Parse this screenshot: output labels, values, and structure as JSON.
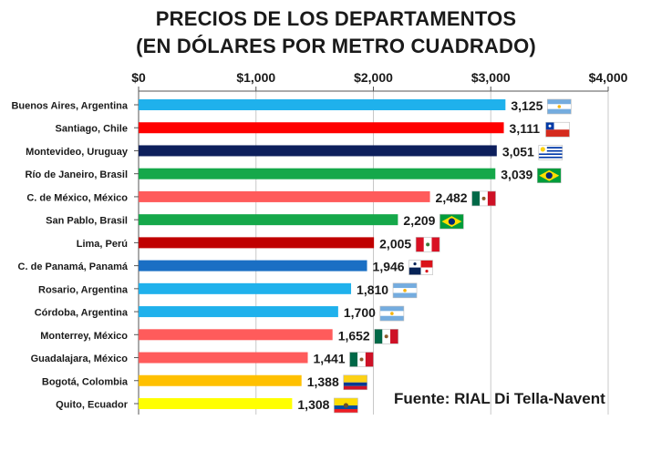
{
  "chart_data": {
    "type": "bar",
    "orientation": "horizontal",
    "title_line1": "PRECIOS DE LOS DEPARTAMENTOS",
    "title_line2": "(EN DÓLARES POR METRO CUADRADO)",
    "source": "Fuente: RIAL Di Tella-Navent",
    "xlim": [
      0,
      4000
    ],
    "x_ticks": [
      0,
      1000,
      2000,
      3000,
      4000
    ],
    "x_tick_labels": [
      "$0",
      "$1,000",
      "$2,000",
      "$3,000",
      "$4,000"
    ],
    "tick_position": "top",
    "grid": true,
    "categories": [
      "Buenos Aires, Argentina",
      "Santiago, Chile",
      "Montevideo, Uruguay",
      "Río de Janeiro, Brasil",
      "C. de México, México",
      "San Pablo, Brasil",
      "Lima, Perú",
      "C. de Panamá, Panamá",
      "Rosario, Argentina",
      "Córdoba, Argentina",
      "Monterrey, México",
      "Guadalajara, México",
      "Bogotá, Colombia",
      "Quito, Ecuador"
    ],
    "values": [
      3125,
      3111,
      3051,
      3039,
      2482,
      2209,
      2005,
      1946,
      1810,
      1700,
      1652,
      1441,
      1388,
      1308
    ],
    "value_labels": [
      "3,125",
      "3,111",
      "3,051",
      "3,039",
      "2,482",
      "2,209",
      "2,005",
      "1,946",
      "1,810",
      "1,700",
      "1,652",
      "1,441",
      "1,388",
      "1,308"
    ],
    "bar_colors": [
      "#1fb1ec",
      "#ff0000",
      "#0d1f5c",
      "#15a84a",
      "#ff5b5b",
      "#15a84a",
      "#c00000",
      "#1a6fc4",
      "#1fb1ec",
      "#1fb1ec",
      "#ff5b5b",
      "#ff5b5b",
      "#ffc000",
      "#ffff00"
    ],
    "flags": [
      "argentina-flag",
      "chile-flag",
      "uruguay-flag",
      "brazil-flag",
      "mexico-flag",
      "brazil-flag",
      "peru-flag",
      "panama-flag",
      "argentina-flag",
      "argentina-flag",
      "mexico-flag",
      "mexico-flag",
      "colombia-flag",
      "ecuador-flag"
    ]
  }
}
